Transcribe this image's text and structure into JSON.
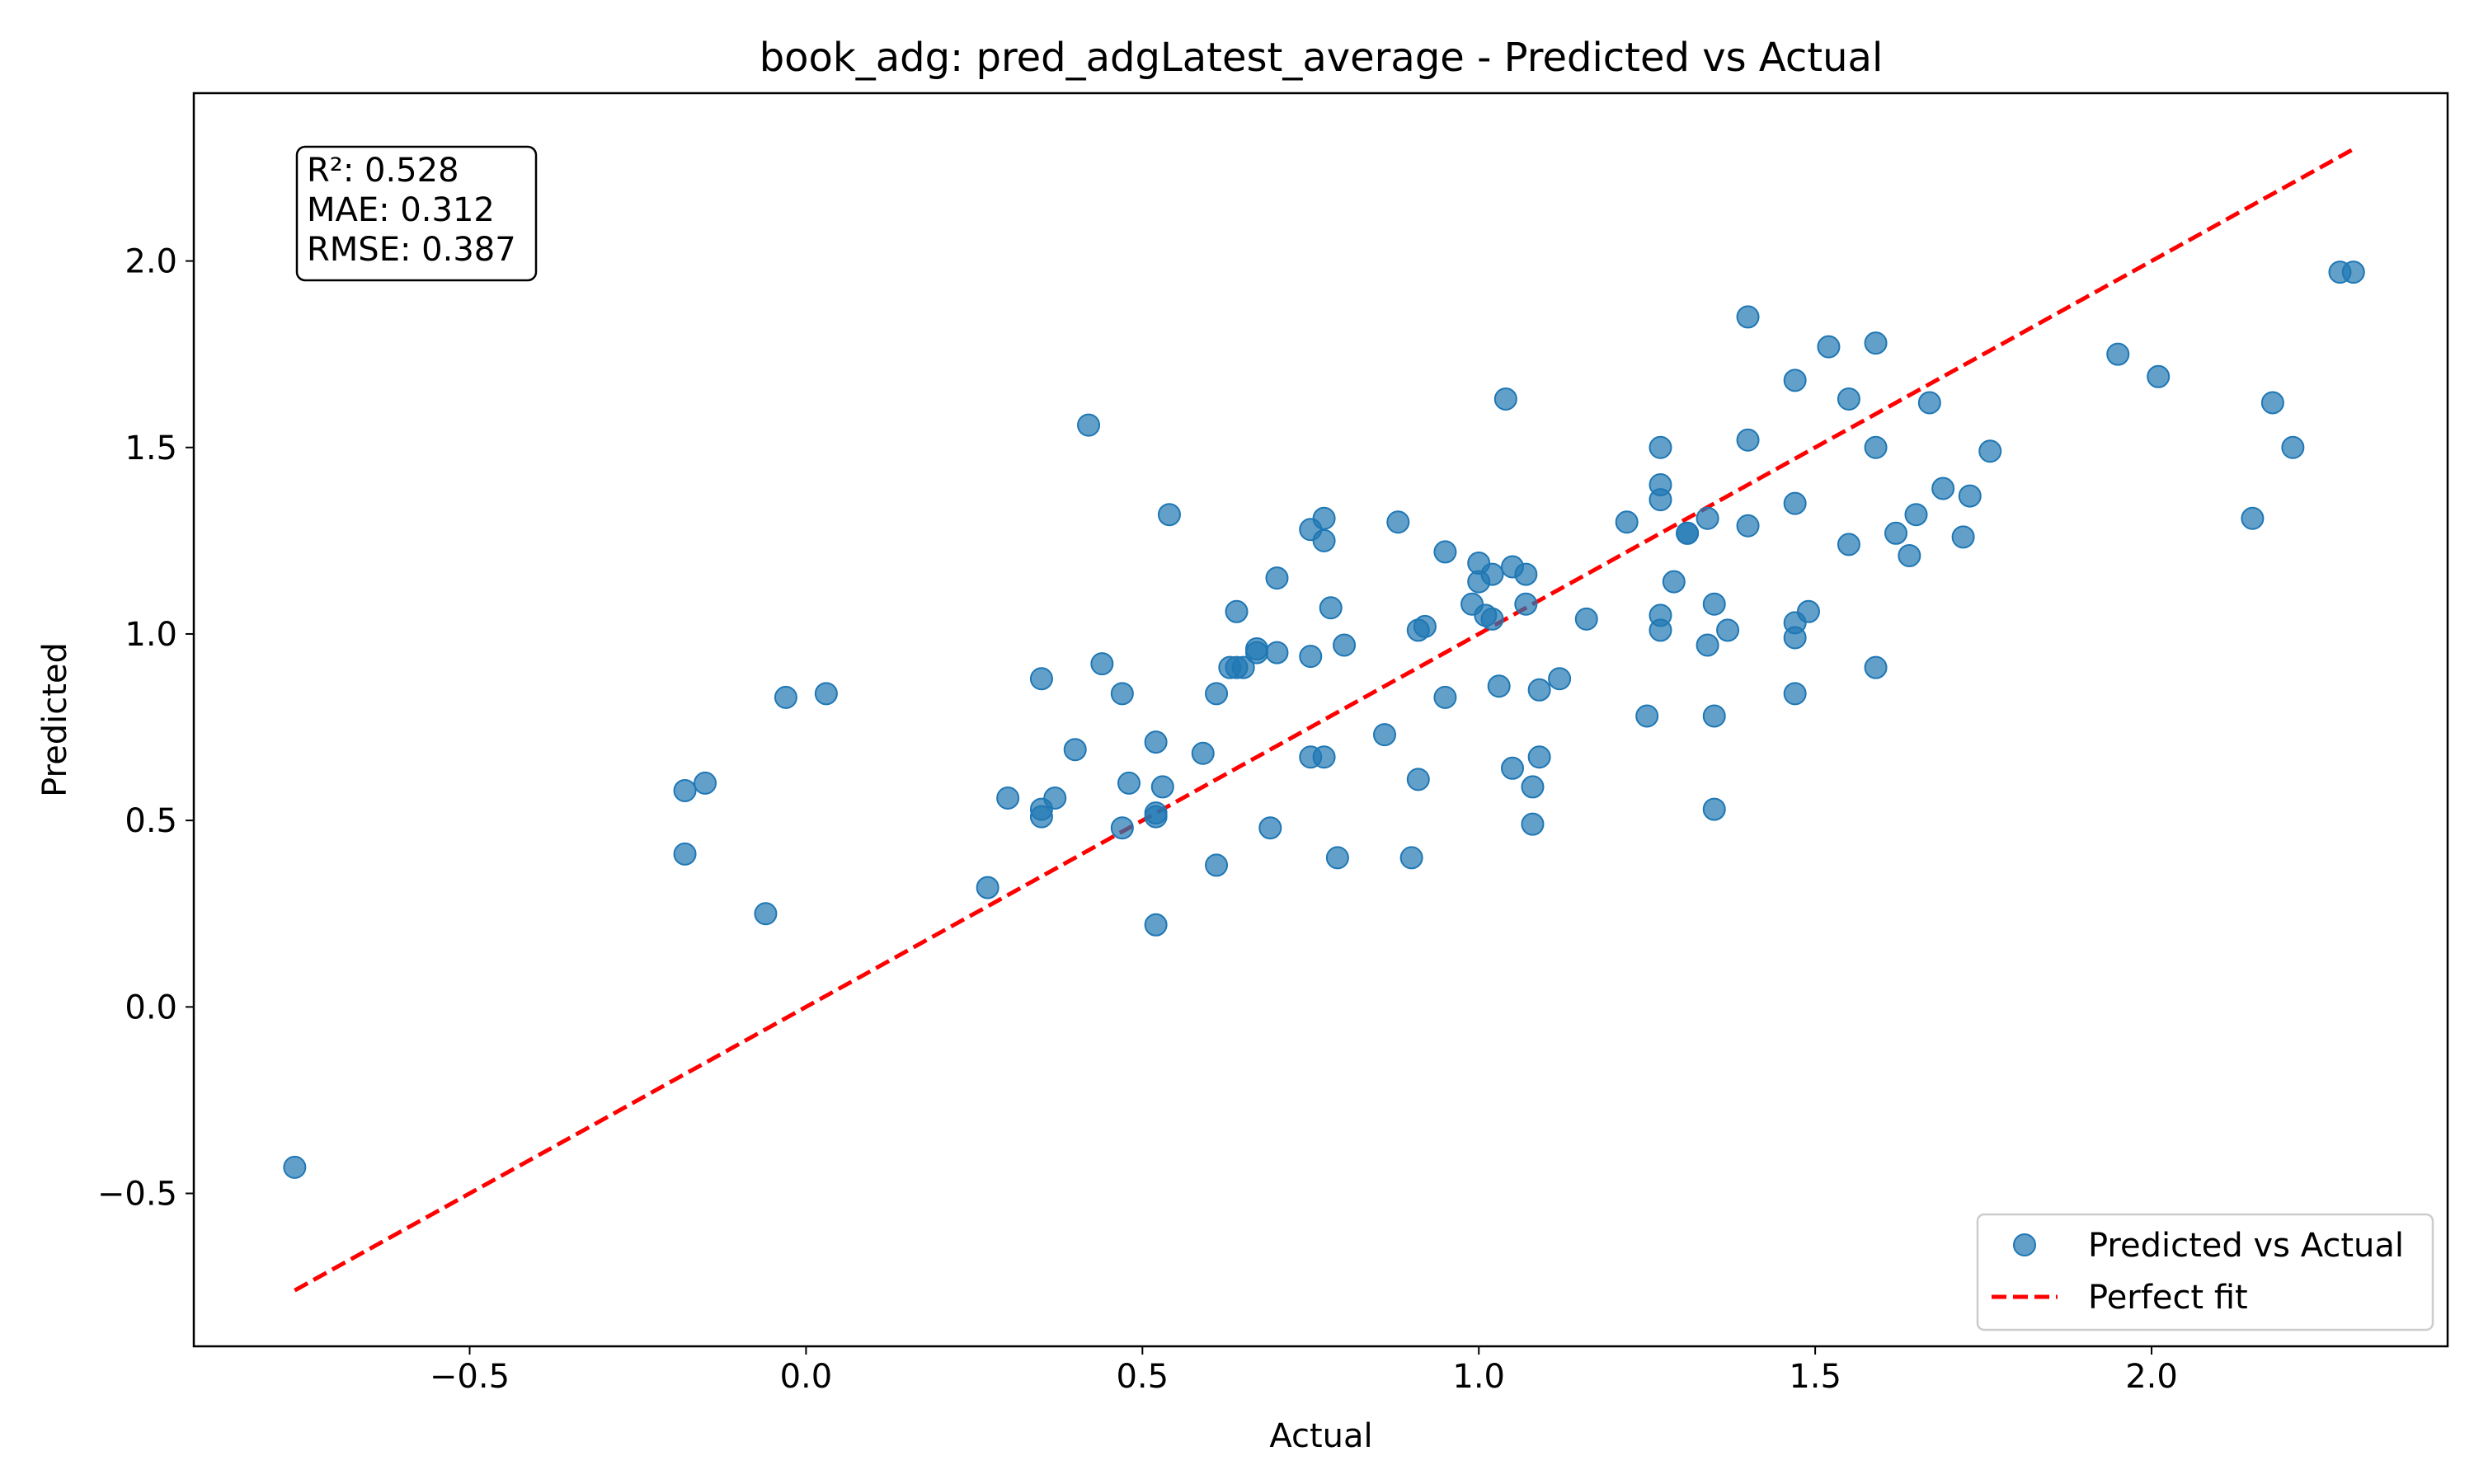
{
  "chart_data": {
    "type": "scatter",
    "title": "book_adg: pred_adgLatest_average - Predicted vs Actual",
    "xlabel": "Actual",
    "ylabel": "Predicted",
    "xlim": [
      -0.91,
      2.44
    ],
    "ylim": [
      -0.91,
      2.45
    ],
    "xticks": [
      -0.5,
      0.0,
      0.5,
      1.0,
      1.5,
      2.0
    ],
    "yticks": [
      -0.5,
      0.0,
      0.5,
      1.0,
      1.5,
      2.0
    ],
    "xtick_labels": [
      "−0.5",
      "0.0",
      "0.5",
      "1.0",
      "1.5",
      "2.0"
    ],
    "ytick_labels": [
      "−0.5",
      "0.0",
      "0.5",
      "1.0",
      "1.5",
      "2.0"
    ],
    "grid": false,
    "legend_position": "lower-right",
    "stats_box_position": "top-left",
    "stats": {
      "r2": "R²: 0.528",
      "mae": "MAE: 0.312",
      "rmse": "RMSE: 0.387"
    },
    "series": [
      {
        "name": "Predicted vs Actual",
        "kind": "scatter",
        "color": "#1f77b4",
        "x": [
          -0.76,
          -0.18,
          -0.18,
          -0.15,
          -0.06,
          -0.03,
          0.03,
          0.27,
          0.3,
          0.35,
          0.35,
          0.35,
          0.37,
          0.4,
          0.42,
          0.44,
          0.47,
          0.47,
          0.48,
          0.52,
          0.52,
          0.52,
          0.52,
          0.53,
          0.54,
          0.59,
          0.61,
          0.61,
          0.63,
          0.64,
          0.64,
          0.65,
          0.67,
          0.67,
          0.69,
          0.7,
          0.7,
          0.75,
          0.75,
          0.75,
          0.77,
          0.77,
          0.77,
          0.78,
          0.79,
          0.8,
          0.86,
          0.88,
          0.9,
          0.91,
          0.91,
          0.92,
          0.95,
          0.95,
          0.99,
          1.0,
          1.0,
          1.01,
          1.02,
          1.02,
          1.03,
          1.04,
          1.05,
          1.05,
          1.07,
          1.07,
          1.08,
          1.08,
          1.09,
          1.09,
          1.12,
          1.16,
          1.22,
          1.25,
          1.27,
          1.27,
          1.27,
          1.27,
          1.27,
          1.29,
          1.31,
          1.31,
          1.34,
          1.34,
          1.35,
          1.35,
          1.35,
          1.37,
          1.4,
          1.4,
          1.4,
          1.47,
          1.47,
          1.47,
          1.47,
          1.47,
          1.49,
          1.52,
          1.55,
          1.55,
          1.59,
          1.59,
          1.59,
          1.62,
          1.64,
          1.65,
          1.67,
          1.69,
          1.72,
          1.73,
          1.76,
          1.95,
          2.01,
          2.15,
          2.18,
          2.21,
          2.28,
          2.3
        ],
        "y": [
          -0.43,
          0.58,
          0.41,
          0.6,
          0.25,
          0.83,
          0.84,
          0.32,
          0.56,
          0.88,
          0.53,
          0.51,
          0.56,
          0.69,
          1.56,
          0.92,
          0.84,
          0.48,
          0.6,
          0.71,
          0.51,
          0.52,
          0.22,
          0.59,
          1.32,
          0.68,
          0.38,
          0.84,
          0.91,
          1.06,
          0.91,
          0.91,
          0.96,
          0.95,
          0.48,
          1.15,
          0.95,
          1.28,
          0.94,
          0.67,
          1.25,
          0.67,
          1.31,
          1.07,
          0.4,
          0.97,
          0.73,
          1.3,
          0.4,
          0.61,
          1.01,
          1.02,
          0.83,
          1.22,
          1.08,
          1.14,
          1.19,
          1.05,
          1.16,
          1.04,
          0.86,
          1.63,
          0.64,
          1.18,
          1.08,
          1.16,
          0.59,
          0.49,
          0.67,
          0.85,
          0.88,
          1.04,
          1.3,
          0.78,
          1.5,
          1.4,
          1.36,
          1.05,
          1.01,
          1.14,
          1.27,
          1.27,
          0.97,
          1.31,
          0.53,
          0.78,
          1.08,
          1.01,
          1.85,
          1.52,
          1.29,
          1.68,
          1.35,
          1.03,
          0.99,
          0.84,
          1.06,
          1.77,
          1.24,
          1.63,
          1.5,
          0.91,
          1.78,
          1.27,
          1.21,
          1.32,
          1.62,
          1.39,
          1.26,
          1.37,
          1.49,
          1.75,
          1.69,
          1.31,
          1.62,
          1.5,
          1.97,
          1.97
        ]
      },
      {
        "name": "Perfect fit",
        "kind": "line",
        "style": "dashed",
        "color": "#ff0000",
        "x": [
          -0.76,
          2.3
        ],
        "y": [
          -0.76,
          2.3
        ]
      }
    ]
  }
}
